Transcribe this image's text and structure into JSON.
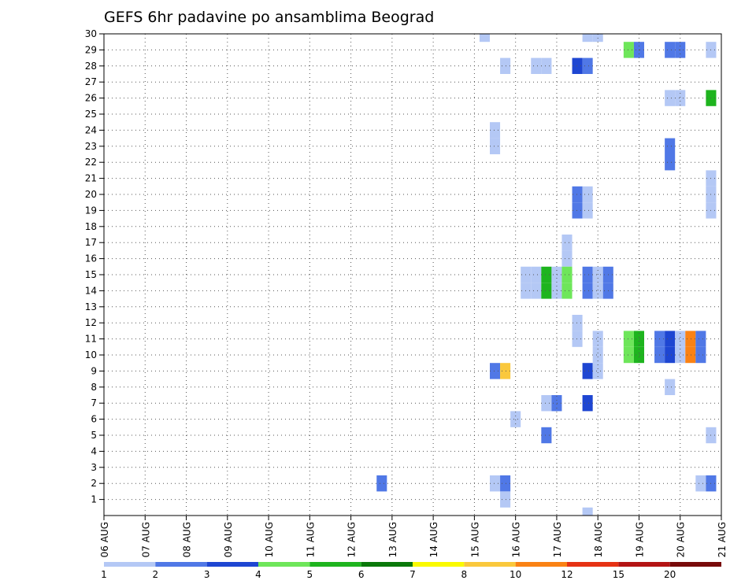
{
  "chart_data": {
    "type": "heatmap",
    "title": "GEFS 6hr padavine po ansamblima Beograd",
    "x_labels": [
      "06 AUG",
      "07 AUG",
      "08 AUG",
      "09 AUG",
      "10 AUG",
      "11 AUG",
      "12 AUG",
      "13 AUG",
      "14 AUG",
      "15 AUG",
      "16 AUG",
      "17 AUG",
      "18 AUG",
      "19 AUG",
      "20 AUG",
      "21 AUG"
    ],
    "y_labels": [
      "1",
      "2",
      "3",
      "4",
      "5",
      "6",
      "7",
      "8",
      "9",
      "10",
      "11",
      "12",
      "13",
      "14",
      "15",
      "16",
      "17",
      "18",
      "19",
      "20",
      "21",
      "22",
      "23",
      "24",
      "25",
      "26",
      "27",
      "28",
      "29",
      "30"
    ],
    "ylim": [
      0,
      30
    ],
    "time_step_hours": 6,
    "grid": true,
    "legend": {
      "placement": "bottom",
      "labels": [
        "1",
        "2",
        "3",
        "4",
        "5",
        "6",
        "7",
        "8",
        "10",
        "12",
        "15",
        "20"
      ],
      "colors": [
        "#b4c8f5",
        "#5078e6",
        "#1e46d2",
        "#6ee65a",
        "#1eb41e",
        "#0a780a",
        "#fafa00",
        "#fac83c",
        "#fa8214",
        "#e63214",
        "#b41414",
        "#780a0a"
      ]
    },
    "cells": [
      {
        "date": "15 AUG",
        "hour": 6,
        "member": 30,
        "color": "#b4c8f5"
      },
      {
        "date": "17 AUG",
        "hour": 18,
        "member": 30,
        "color": "#b4c8f5"
      },
      {
        "date": "18 AUG",
        "hour": 0,
        "member": 30,
        "color": "#b4c8f5"
      },
      {
        "date": "18 AUG",
        "hour": 18,
        "member": 29,
        "color": "#6ee65a"
      },
      {
        "date": "19 AUG",
        "hour": 0,
        "member": 29,
        "color": "#5078e6"
      },
      {
        "date": "19 AUG",
        "hour": 18,
        "member": 29,
        "color": "#5078e6"
      },
      {
        "date": "20 AUG",
        "hour": 0,
        "member": 29,
        "color": "#5078e6"
      },
      {
        "date": "20 AUG",
        "hour": 18,
        "member": 29,
        "color": "#b4c8f5"
      },
      {
        "date": "15 AUG",
        "hour": 18,
        "member": 28,
        "color": "#b4c8f5"
      },
      {
        "date": "16 AUG",
        "hour": 12,
        "member": 28,
        "color": "#b4c8f5"
      },
      {
        "date": "16 AUG",
        "hour": 18,
        "member": 28,
        "color": "#b4c8f5"
      },
      {
        "date": "17 AUG",
        "hour": 12,
        "member": 28,
        "color": "#1e46d2"
      },
      {
        "date": "17 AUG",
        "hour": 18,
        "member": 28,
        "color": "#5078e6"
      },
      {
        "date": "19 AUG",
        "hour": 18,
        "member": 26,
        "color": "#b4c8f5"
      },
      {
        "date": "20 AUG",
        "hour": 0,
        "member": 26,
        "color": "#b4c8f5"
      },
      {
        "date": "20 AUG",
        "hour": 18,
        "member": 26,
        "color": "#1eb41e"
      },
      {
        "date": "15 AUG",
        "hour": 12,
        "member": 24,
        "color": "#b4c8f5"
      },
      {
        "date": "15 AUG",
        "hour": 12,
        "member": 23,
        "color": "#b4c8f5"
      },
      {
        "date": "19 AUG",
        "hour": 18,
        "member": 23,
        "color": "#5078e6"
      },
      {
        "date": "19 AUG",
        "hour": 18,
        "member": 22,
        "color": "#5078e6"
      },
      {
        "date": "20 AUG",
        "hour": 18,
        "member": 21,
        "color": "#b4c8f5"
      },
      {
        "date": "20 AUG",
        "hour": 18,
        "member": 20,
        "color": "#b4c8f5"
      },
      {
        "date": "17 AUG",
        "hour": 12,
        "member": 20,
        "color": "#5078e6"
      },
      {
        "date": "17 AUG",
        "hour": 18,
        "member": 20,
        "color": "#b4c8f5"
      },
      {
        "date": "17 AUG",
        "hour": 12,
        "member": 19,
        "color": "#5078e6"
      },
      {
        "date": "17 AUG",
        "hour": 18,
        "member": 19,
        "color": "#b4c8f5"
      },
      {
        "date": "20 AUG",
        "hour": 18,
        "member": 19,
        "color": "#b4c8f5"
      },
      {
        "date": "17 AUG",
        "hour": 6,
        "member": 17,
        "color": "#b4c8f5"
      },
      {
        "date": "17 AUG",
        "hour": 6,
        "member": 16,
        "color": "#b4c8f5"
      },
      {
        "date": "16 AUG",
        "hour": 6,
        "member": 15,
        "color": "#b4c8f5"
      },
      {
        "date": "16 AUG",
        "hour": 12,
        "member": 15,
        "color": "#b4c8f5"
      },
      {
        "date": "16 AUG",
        "hour": 18,
        "member": 15,
        "color": "#1eb41e"
      },
      {
        "date": "17 AUG",
        "hour": 0,
        "member": 15,
        "color": "#b4c8f5"
      },
      {
        "date": "17 AUG",
        "hour": 6,
        "member": 15,
        "color": "#6ee65a"
      },
      {
        "date": "17 AUG",
        "hour": 18,
        "member": 15,
        "color": "#5078e6"
      },
      {
        "date": "18 AUG",
        "hour": 0,
        "member": 15,
        "color": "#b4c8f5"
      },
      {
        "date": "18 AUG",
        "hour": 6,
        "member": 15,
        "color": "#5078e6"
      },
      {
        "date": "16 AUG",
        "hour": 6,
        "member": 14,
        "color": "#b4c8f5"
      },
      {
        "date": "16 AUG",
        "hour": 12,
        "member": 14,
        "color": "#b4c8f5"
      },
      {
        "date": "16 AUG",
        "hour": 18,
        "member": 14,
        "color": "#1eb41e"
      },
      {
        "date": "17 AUG",
        "hour": 0,
        "member": 14,
        "color": "#b4c8f5"
      },
      {
        "date": "17 AUG",
        "hour": 6,
        "member": 14,
        "color": "#6ee65a"
      },
      {
        "date": "17 AUG",
        "hour": 18,
        "member": 14,
        "color": "#5078e6"
      },
      {
        "date": "18 AUG",
        "hour": 0,
        "member": 14,
        "color": "#b4c8f5"
      },
      {
        "date": "18 AUG",
        "hour": 6,
        "member": 14,
        "color": "#5078e6"
      },
      {
        "date": "17 AUG",
        "hour": 12,
        "member": 12,
        "color": "#b4c8f5"
      },
      {
        "date": "17 AUG",
        "hour": 12,
        "member": 11,
        "color": "#b4c8f5"
      },
      {
        "date": "18 AUG",
        "hour": 0,
        "member": 11,
        "color": "#b4c8f5"
      },
      {
        "date": "18 AUG",
        "hour": 18,
        "member": 11,
        "color": "#6ee65a"
      },
      {
        "date": "19 AUG",
        "hour": 0,
        "member": 11,
        "color": "#1eb41e"
      },
      {
        "date": "19 AUG",
        "hour": 12,
        "member": 11,
        "color": "#5078e6"
      },
      {
        "date": "19 AUG",
        "hour": 18,
        "member": 11,
        "color": "#1e46d2"
      },
      {
        "date": "20 AUG",
        "hour": 0,
        "member": 11,
        "color": "#b4c8f5"
      },
      {
        "date": "20 AUG",
        "hour": 6,
        "member": 11,
        "color": "#fa8214"
      },
      {
        "date": "20 AUG",
        "hour": 12,
        "member": 11,
        "color": "#5078e6"
      },
      {
        "date": "18 AUG",
        "hour": 0,
        "member": 10,
        "color": "#b4c8f5"
      },
      {
        "date": "18 AUG",
        "hour": 18,
        "member": 10,
        "color": "#6ee65a"
      },
      {
        "date": "19 AUG",
        "hour": 0,
        "member": 10,
        "color": "#1eb41e"
      },
      {
        "date": "19 AUG",
        "hour": 12,
        "member": 10,
        "color": "#5078e6"
      },
      {
        "date": "19 AUG",
        "hour": 18,
        "member": 10,
        "color": "#1e46d2"
      },
      {
        "date": "20 AUG",
        "hour": 0,
        "member": 10,
        "color": "#b4c8f5"
      },
      {
        "date": "20 AUG",
        "hour": 6,
        "member": 10,
        "color": "#fa8214"
      },
      {
        "date": "20 AUG",
        "hour": 12,
        "member": 10,
        "color": "#5078e6"
      },
      {
        "date": "15 AUG",
        "hour": 12,
        "member": 9,
        "color": "#5078e6"
      },
      {
        "date": "15 AUG",
        "hour": 18,
        "member": 9,
        "color": "#fac83c"
      },
      {
        "date": "17 AUG",
        "hour": 18,
        "member": 9,
        "color": "#1e46d2"
      },
      {
        "date": "18 AUG",
        "hour": 0,
        "member": 9,
        "color": "#b4c8f5"
      },
      {
        "date": "19 AUG",
        "hour": 18,
        "member": 8,
        "color": "#b4c8f5"
      },
      {
        "date": "16 AUG",
        "hour": 18,
        "member": 7,
        "color": "#b4c8f5"
      },
      {
        "date": "17 AUG",
        "hour": 0,
        "member": 7,
        "color": "#5078e6"
      },
      {
        "date": "17 AUG",
        "hour": 18,
        "member": 7,
        "color": "#1e46d2"
      },
      {
        "date": "16 AUG",
        "hour": 0,
        "member": 6,
        "color": "#b4c8f5"
      },
      {
        "date": "16 AUG",
        "hour": 18,
        "member": 5,
        "color": "#5078e6"
      },
      {
        "date": "20 AUG",
        "hour": 18,
        "member": 5,
        "color": "#b4c8f5"
      },
      {
        "date": "12 AUG",
        "hour": 18,
        "member": 2,
        "color": "#5078e6"
      },
      {
        "date": "15 AUG",
        "hour": 12,
        "member": 2,
        "color": "#b4c8f5"
      },
      {
        "date": "15 AUG",
        "hour": 18,
        "member": 2,
        "color": "#5078e6"
      },
      {
        "date": "20 AUG",
        "hour": 12,
        "member": 2,
        "color": "#b4c8f5"
      },
      {
        "date": "20 AUG",
        "hour": 18,
        "member": 2,
        "color": "#5078e6"
      },
      {
        "date": "15 AUG",
        "hour": 18,
        "member": 1,
        "color": "#b4c8f5"
      },
      {
        "date": "17 AUG",
        "hour": 18,
        "member": 0,
        "color": "#b4c8f5"
      }
    ]
  }
}
